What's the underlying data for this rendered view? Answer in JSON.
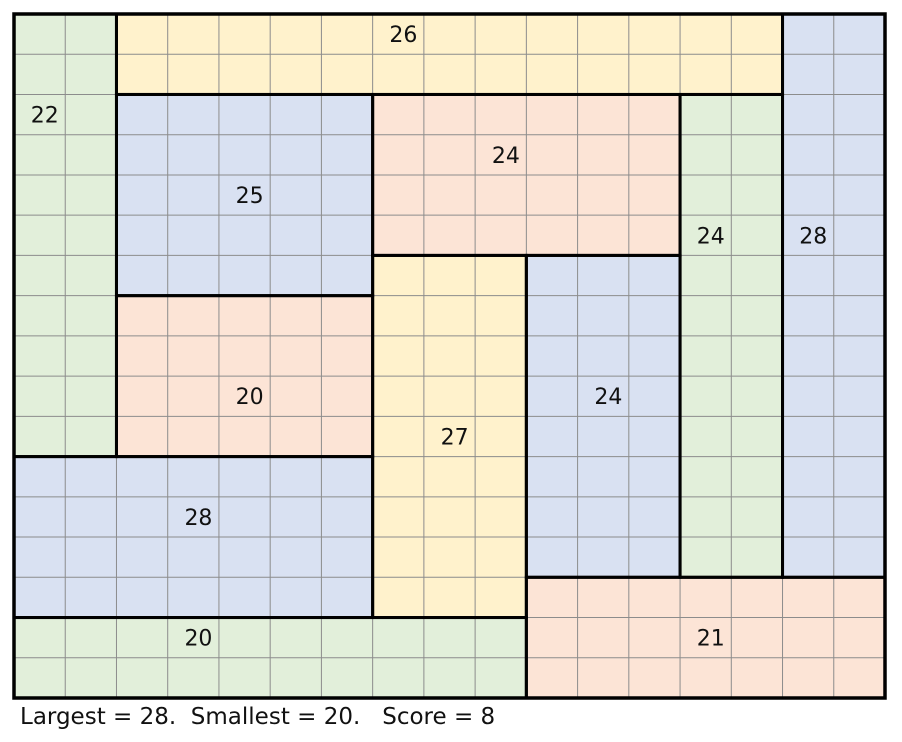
{
  "regions": [
    26,
    22,
    28,
    25,
    24,
    24,
    20,
    27,
    24,
    28,
    20,
    21
  ],
  "footer": "Largest = 28.  Smallest = 20.   Score = 8"
}
